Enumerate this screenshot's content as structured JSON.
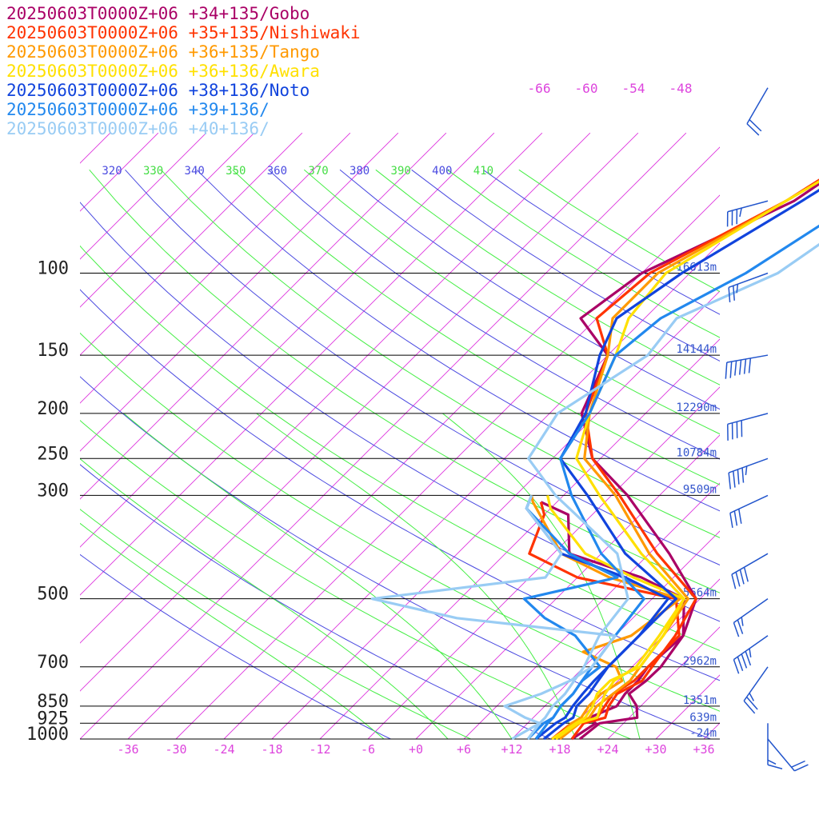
{
  "chart_data": {
    "type": "line",
    "title": "",
    "xlabel": "",
    "ylabel": "",
    "pressure_levels": [
      {
        "p": 100,
        "label": "100",
        "height": "16613m"
      },
      {
        "p": 150,
        "label": "150",
        "height": "14144m"
      },
      {
        "p": 200,
        "label": "200",
        "height": "12290m"
      },
      {
        "p": 250,
        "label": "250",
        "height": "10784m"
      },
      {
        "p": 300,
        "label": "300",
        "height": "9509m"
      },
      {
        "p": 500,
        "label": "500",
        "height": "5664m"
      },
      {
        "p": 700,
        "label": "700",
        "height": "2962m"
      },
      {
        "p": 850,
        "label": "850",
        "height": "1351m"
      },
      {
        "p": 925,
        "label": "925",
        "height": "639m"
      },
      {
        "p": 1000,
        "label": "1000",
        "height": "-24m"
      }
    ],
    "temperature_ticks": [
      {
        "t": -36,
        "label": "-36"
      },
      {
        "t": -30,
        "label": "-30"
      },
      {
        "t": -24,
        "label": "-24"
      },
      {
        "t": -18,
        "label": "-18"
      },
      {
        "t": -12,
        "label": "-12"
      },
      {
        "t": -6,
        "label": "-6"
      },
      {
        "t": 0,
        "label": "+0"
      },
      {
        "t": 6,
        "label": "+6"
      },
      {
        "t": 12,
        "label": "+12"
      },
      {
        "t": 18,
        "label": "+18"
      },
      {
        "t": 24,
        "label": "+24"
      },
      {
        "t": 30,
        "label": "+30"
      },
      {
        "t": 36,
        "label": "+36"
      }
    ],
    "upper_temperature_labels": [
      {
        "t": -66,
        "label": "-66"
      },
      {
        "t": -60,
        "label": "-60"
      },
      {
        "t": -54,
        "label": "-54"
      },
      {
        "t": -48,
        "label": "-48"
      }
    ],
    "theta_labels": [
      "320",
      "330",
      "340",
      "350",
      "360",
      "370",
      "380",
      "390",
      "400",
      "410"
    ],
    "series": [
      {
        "name": "20250603T0000Z+06 +34+135/Gobo",
        "color": "#aa0066",
        "temp": [
          [
            1000,
            20.5
          ],
          [
            925,
            21
          ],
          [
            900,
            25
          ],
          [
            850,
            23.5
          ],
          [
            800,
            21
          ],
          [
            750,
            21.5
          ],
          [
            700,
            21.6
          ],
          [
            600,
            20.5
          ],
          [
            500,
            17.5
          ],
          [
            400,
            8.5
          ],
          [
            300,
            -4
          ],
          [
            250,
            -13
          ],
          [
            200,
            -20
          ],
          [
            150,
            -24
          ],
          [
            125,
            -32
          ],
          [
            100,
            -30
          ],
          [
            70,
            -20
          ],
          [
            50,
            -16
          ],
          [
            40,
            -14
          ]
        ],
        "dew": [
          [
            1000,
            19.5
          ],
          [
            925,
            20.5
          ],
          [
            900,
            19
          ],
          [
            850,
            21
          ],
          [
            800,
            20.5
          ],
          [
            750,
            20.5
          ],
          [
            700,
            20
          ],
          [
            600,
            20.5
          ],
          [
            500,
            16
          ],
          [
            450,
            8
          ],
          [
            400,
            -4
          ],
          [
            330,
            -9
          ],
          [
            310,
            -14
          ]
        ]
      },
      {
        "name": "20250603T0000Z+06 +35+135/Nishiwaki",
        "color": "#ff3300",
        "temp": [
          [
            1000,
            19.5
          ],
          [
            925,
            19
          ],
          [
            900,
            21
          ],
          [
            850,
            20
          ],
          [
            800,
            19.5
          ],
          [
            750,
            21
          ],
          [
            700,
            20.5
          ],
          [
            600,
            19.5
          ],
          [
            500,
            17.5
          ],
          [
            400,
            7
          ],
          [
            300,
            -5
          ],
          [
            250,
            -13
          ],
          [
            200,
            -19.5
          ],
          [
            150,
            -24
          ],
          [
            125,
            -30
          ],
          [
            100,
            -29
          ],
          [
            70,
            -21
          ],
          [
            50,
            -16
          ],
          [
            40,
            -14
          ]
        ],
        "dew": [
          [
            1000,
            17
          ],
          [
            925,
            17.5
          ],
          [
            900,
            20
          ],
          [
            850,
            19.5
          ],
          [
            800,
            19
          ],
          [
            750,
            20
          ],
          [
            700,
            20
          ],
          [
            600,
            20
          ],
          [
            500,
            15
          ],
          [
            450,
            0
          ],
          [
            400,
            -9
          ],
          [
            330,
            -12
          ],
          [
            310,
            -14
          ]
        ]
      },
      {
        "name": "20250603T0000Z+06 +36+135/Tango",
        "color": "#ff9900",
        "temp": [
          [
            1000,
            18
          ],
          [
            925,
            18.5
          ],
          [
            900,
            19
          ],
          [
            850,
            18.5
          ],
          [
            800,
            19
          ],
          [
            750,
            19.5
          ],
          [
            700,
            19
          ],
          [
            600,
            18
          ],
          [
            500,
            16.5
          ],
          [
            400,
            6
          ],
          [
            300,
            -5.5
          ],
          [
            250,
            -14
          ],
          [
            200,
            -19
          ],
          [
            150,
            -24
          ],
          [
            125,
            -28
          ],
          [
            100,
            -28
          ],
          [
            70,
            -21
          ],
          [
            50,
            -15
          ],
          [
            40,
            -13
          ]
        ],
        "dew": [
          [
            1000,
            17.5
          ],
          [
            925,
            17.5
          ],
          [
            900,
            18
          ],
          [
            850,
            17.5
          ],
          [
            800,
            17.5
          ],
          [
            750,
            18.5
          ],
          [
            700,
            16
          ],
          [
            650,
            10
          ],
          [
            600,
            14
          ],
          [
            500,
            15.5
          ],
          [
            450,
            4
          ],
          [
            400,
            -5
          ],
          [
            310,
            -15
          ],
          [
            300,
            -16
          ]
        ]
      },
      {
        "name": "20250603T0000Z+06 +36+136/Awara",
        "color": "#ffe000",
        "temp": [
          [
            1000,
            17.5
          ],
          [
            925,
            18.3
          ],
          [
            900,
            20
          ],
          [
            850,
            19
          ],
          [
            800,
            18
          ],
          [
            750,
            17.5
          ],
          [
            700,
            18.5
          ],
          [
            600,
            17.5
          ],
          [
            500,
            16
          ],
          [
            400,
            5
          ],
          [
            300,
            -7.5
          ],
          [
            250,
            -15
          ],
          [
            200,
            -19
          ],
          [
            150,
            -23
          ],
          [
            125,
            -26
          ],
          [
            100,
            -27
          ],
          [
            70,
            -21
          ],
          [
            50,
            -15
          ],
          [
            40,
            -13
          ]
        ],
        "dew": [
          [
            1000,
            17
          ],
          [
            925,
            18
          ],
          [
            900,
            18.5
          ],
          [
            850,
            18
          ],
          [
            800,
            17
          ],
          [
            750,
            17
          ],
          [
            700,
            19
          ],
          [
            600,
            18
          ],
          [
            500,
            16
          ],
          [
            450,
            7
          ],
          [
            400,
            -2
          ],
          [
            320,
            -12
          ],
          [
            300,
            -14
          ]
        ]
      },
      {
        "name": "20250603T0000Z+06 +38+136/Noto",
        "color": "#1144dd",
        "temp": [
          [
            1000,
            16
          ],
          [
            925,
            16.5
          ],
          [
            900,
            17
          ],
          [
            850,
            16
          ],
          [
            800,
            16
          ],
          [
            750,
            15.5
          ],
          [
            700,
            15
          ],
          [
            600,
            15
          ],
          [
            500,
            15
          ],
          [
            400,
            3
          ],
          [
            300,
            -9
          ],
          [
            250,
            -17
          ],
          [
            200,
            -19.5
          ],
          [
            150,
            -25
          ],
          [
            125,
            -27.5
          ],
          [
            100,
            -25
          ],
          [
            70,
            -19
          ],
          [
            50,
            -14
          ],
          [
            40,
            -12
          ]
        ],
        "dew": [
          [
            1000,
            15
          ],
          [
            925,
            15.5
          ],
          [
            900,
            16
          ],
          [
            850,
            15.5
          ],
          [
            800,
            15.2
          ],
          [
            750,
            15
          ],
          [
            700,
            15
          ],
          [
            600,
            15
          ],
          [
            500,
            14
          ],
          [
            450,
            6
          ],
          [
            400,
            -5
          ],
          [
            320,
            -15
          ],
          [
            300,
            -16
          ]
        ]
      },
      {
        "name": "20250603T0000Z+06 +39+136/",
        "color": "#2288ee",
        "temp": [
          [
            1000,
            15
          ],
          [
            925,
            14.5
          ],
          [
            900,
            14.5
          ],
          [
            850,
            14
          ],
          [
            800,
            14
          ],
          [
            750,
            13.5
          ],
          [
            700,
            13
          ],
          [
            600,
            12
          ],
          [
            500,
            11
          ],
          [
            400,
            0
          ],
          [
            300,
            -11
          ],
          [
            250,
            -17
          ],
          [
            200,
            -19
          ],
          [
            150,
            -23
          ],
          [
            125,
            -22
          ],
          [
            100,
            -17
          ],
          [
            70,
            -12
          ],
          [
            50,
            -12
          ],
          [
            40,
            -11
          ]
        ],
        "dew": [
          [
            1000,
            14
          ],
          [
            925,
            14
          ],
          [
            900,
            14.5
          ],
          [
            850,
            14
          ],
          [
            800,
            14
          ],
          [
            750,
            13.5
          ],
          [
            700,
            14
          ],
          [
            600,
            7
          ],
          [
            550,
            1
          ],
          [
            500,
            -4
          ],
          [
            450,
            5
          ],
          [
            400,
            -4
          ],
          [
            320,
            -15
          ],
          [
            300,
            -16
          ]
        ]
      },
      {
        "name": "20250603T0000Z+06 +40+136/",
        "color": "#99ccf4",
        "temp": [
          [
            1000,
            14
          ],
          [
            925,
            13.5
          ],
          [
            900,
            13.5
          ],
          [
            850,
            13
          ],
          [
            800,
            13
          ],
          [
            750,
            12.5
          ],
          [
            700,
            12
          ],
          [
            600,
            10
          ],
          [
            500,
            9
          ],
          [
            400,
            2
          ],
          [
            300,
            -13
          ],
          [
            250,
            -21
          ],
          [
            200,
            -23
          ],
          [
            150,
            -19
          ],
          [
            125,
            -20
          ],
          [
            100,
            -13
          ],
          [
            70,
            -9
          ],
          [
            50,
            -10
          ],
          [
            40,
            -8
          ]
        ],
        "dew": [
          [
            1000,
            12
          ],
          [
            925,
            13.5
          ],
          [
            900,
            11
          ],
          [
            850,
            7
          ],
          [
            800,
            10
          ],
          [
            750,
            12
          ],
          [
            700,
            13
          ],
          [
            600,
            12
          ],
          [
            550,
            -10
          ],
          [
            500,
            -23
          ],
          [
            450,
            -4
          ],
          [
            400,
            -5
          ],
          [
            320,
            -15
          ],
          [
            300,
            -16
          ]
        ]
      }
    ],
    "wind_barbs": [
      {
        "p": 40,
        "dir": 210,
        "speed": 50
      },
      {
        "p": 70,
        "dir": 255,
        "speed": 35
      },
      {
        "p": 100,
        "dir": 250,
        "speed": 25
      },
      {
        "p": 150,
        "dir": 260,
        "speed": 90
      },
      {
        "p": 200,
        "dir": 255,
        "speed": 100
      },
      {
        "p": 250,
        "dir": 250,
        "speed": 75
      },
      {
        "p": 300,
        "dir": 245,
        "speed": 30
      },
      {
        "p": 400,
        "dir": 240,
        "speed": 40
      },
      {
        "p": 500,
        "dir": 235,
        "speed": 25
      },
      {
        "p": 600,
        "dir": 235,
        "speed": 45
      },
      {
        "p": 700,
        "dir": 215,
        "speed": 55
      },
      {
        "p": 925,
        "dir": 180,
        "speed": 15
      },
      {
        "p": 1000,
        "dir": 140,
        "speed": 20
      }
    ]
  }
}
